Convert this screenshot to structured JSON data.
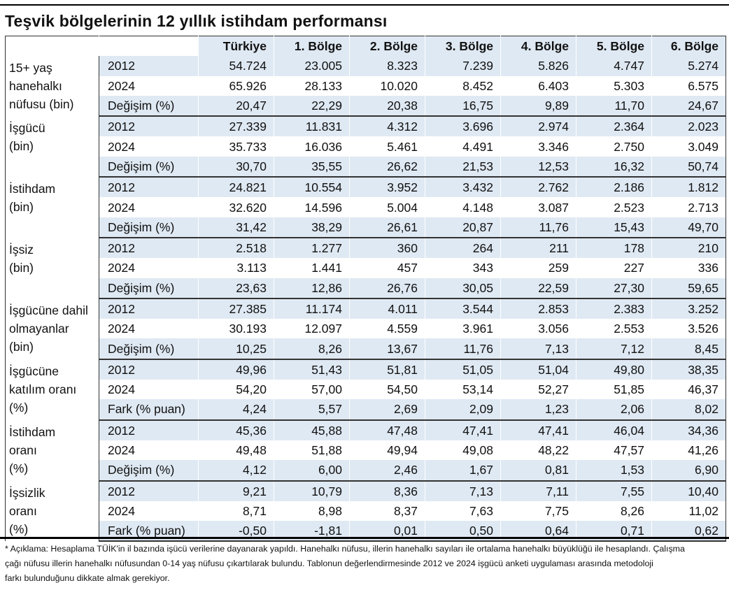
{
  "title": "Teşvik bölgelerinin 12 yıllık istihdam performansı",
  "columns": [
    "Türkiye",
    "1. Bölge",
    "2. Bölge",
    "3. Bölge",
    "4. Bölge",
    "5. Bölge",
    "6. Bölge"
  ],
  "groups": [
    {
      "label": [
        "15+ yaş",
        "hanehalkı",
        "nüfusu (bin)"
      ],
      "rows": [
        {
          "label": "2012",
          "values": [
            "54.724",
            "23.005",
            "8.323",
            "7.239",
            "5.826",
            "4.747",
            "5.274"
          ]
        },
        {
          "label": "2024",
          "values": [
            "65.926",
            "28.133",
            "10.020",
            "8.452",
            "6.403",
            "5.303",
            "6.575"
          ]
        },
        {
          "label": "Değişim (%)",
          "values": [
            "20,47",
            "22,29",
            "20,38",
            "16,75",
            "9,89",
            "11,70",
            "24,67"
          ]
        }
      ]
    },
    {
      "label": [
        "İşgücü",
        "(bin)"
      ],
      "rows": [
        {
          "label": "2012",
          "values": [
            "27.339",
            "11.831",
            "4.312",
            "3.696",
            "2.974",
            "2.364",
            "2.023"
          ]
        },
        {
          "label": "2024",
          "values": [
            "35.733",
            "16.036",
            "5.461",
            "4.491",
            "3.346",
            "2.750",
            "3.049"
          ]
        },
        {
          "label": "Değişim (%)",
          "values": [
            "30,70",
            "35,55",
            "26,62",
            "21,53",
            "12,53",
            "16,32",
            "50,74"
          ]
        }
      ]
    },
    {
      "label": [
        "İstihdam",
        "(bin)"
      ],
      "rows": [
        {
          "label": "2012",
          "values": [
            "24.821",
            "10.554",
            "3.952",
            "3.432",
            "2.762",
            "2.186",
            "1.812"
          ]
        },
        {
          "label": "2024",
          "values": [
            "32.620",
            "14.596",
            "5.004",
            "4.148",
            "3.087",
            "2.523",
            "2.713"
          ]
        },
        {
          "label": "Değişim (%)",
          "values": [
            "31,42",
            "38,29",
            "26,61",
            "20,87",
            "11,76",
            "15,43",
            "49,70"
          ]
        }
      ]
    },
    {
      "label": [
        "İşsiz",
        "(bin)"
      ],
      "rows": [
        {
          "label": "2012",
          "values": [
            "2.518",
            "1.277",
            "360",
            "264",
            "211",
            "178",
            "210"
          ]
        },
        {
          "label": "2024",
          "values": [
            "3.113",
            "1.441",
            "457",
            "343",
            "259",
            "227",
            "336"
          ]
        },
        {
          "label": "Değişim (%)",
          "values": [
            "23,63",
            "12,86",
            "26,76",
            "30,05",
            "22,59",
            "27,30",
            "59,65"
          ]
        }
      ]
    },
    {
      "label": [
        "İşgücüne dahil",
        "olmayanlar",
        "(bin)"
      ],
      "rows": [
        {
          "label": "2012",
          "values": [
            "27.385",
            "11.174",
            "4.011",
            "3.544",
            "2.853",
            "2.383",
            "3.252"
          ]
        },
        {
          "label": "2024",
          "values": [
            "30.193",
            "12.097",
            "4.559",
            "3.961",
            "3.056",
            "2.553",
            "3.526"
          ]
        },
        {
          "label": "Değişim (%)",
          "values": [
            "10,25",
            "8,26",
            "13,67",
            "11,76",
            "7,13",
            "7,12",
            "8,45"
          ]
        }
      ]
    },
    {
      "label": [
        "İşgücüne",
        "katılım oranı",
        "(%)"
      ],
      "rows": [
        {
          "label": "2012",
          "values": [
            "49,96",
            "51,43",
            "51,81",
            "51,05",
            "51,04",
            "49,80",
            "38,35"
          ]
        },
        {
          "label": "2024",
          "values": [
            "54,20",
            "57,00",
            "54,50",
            "53,14",
            "52,27",
            "51,85",
            "46,37"
          ]
        },
        {
          "label": "Fark (% puan)",
          "values": [
            "4,24",
            "5,57",
            "2,69",
            "2,09",
            "1,23",
            "2,06",
            "8,02"
          ]
        }
      ]
    },
    {
      "label": [
        "İstihdam",
        "oranı",
        "(%)"
      ],
      "rows": [
        {
          "label": "2012",
          "values": [
            "45,36",
            "45,88",
            "47,48",
            "47,41",
            "47,41",
            "46,04",
            "34,36"
          ]
        },
        {
          "label": "2024",
          "values": [
            "49,48",
            "51,88",
            "49,94",
            "49,08",
            "48,22",
            "47,57",
            "41,26"
          ]
        },
        {
          "label": "Değişim (%)",
          "values": [
            "4,12",
            "6,00",
            "2,46",
            "1,67",
            "0,81",
            "1,53",
            "6,90"
          ]
        }
      ]
    },
    {
      "label": [
        "İşsizlik",
        "oranı",
        "(%)"
      ],
      "rows": [
        {
          "label": "2012",
          "values": [
            "9,21",
            "10,79",
            "8,36",
            "7,13",
            "7,11",
            "7,55",
            "10,40"
          ]
        },
        {
          "label": "2024",
          "values": [
            "8,71",
            "8,98",
            "8,37",
            "7,63",
            "7,75",
            "8,26",
            "11,02"
          ]
        },
        {
          "label": "Fark (% puan)",
          "values": [
            "-0,50",
            "-1,81",
            "0,01",
            "0,50",
            "0,64",
            "0,71",
            "0,62"
          ]
        }
      ]
    }
  ],
  "note": [
    "* Açıklama: Hesaplama TÜİK'in il bazında işücü verilerine dayanarak yapıldı. Hanehalkı nüfusu, illerin hanehalkı sayıları ile ortalama hanehalkı büyüklüğü ile hesaplandı. Çalışma",
    "çağı nüfusu illerin hanehalkı nüfusundan 0-14 yaş nüfusu çıkartılarak bulundu. Tablonun değerlendirmesinde 2012 ve 2024 işgücü anketi uygulaması arasında metodoloji",
    "farkı bulunduğunu dikkate almak gerekiyor."
  ],
  "colors": {
    "shade": "#dfe9f3",
    "rule": "#000000"
  }
}
